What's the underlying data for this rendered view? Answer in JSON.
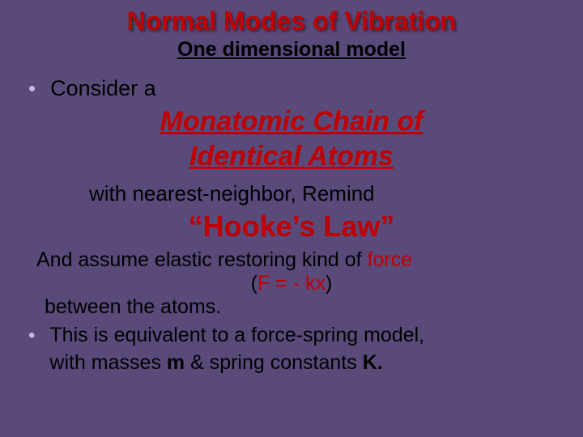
{
  "colors": {
    "background": "#5a4a7a",
    "accent_red": "#c00000",
    "text_black": "#000000",
    "bullet": "#c9b8e0"
  },
  "title": "Normal Modes of Vibration",
  "subtitle": "One dimensional model",
  "bullet_glyph": "•",
  "consider": "Consider a",
  "emphasis_line1": "Monatomic Chain of",
  "emphasis_line2": "Identical Atoms",
  "nn": "with nearest-neighbor, Remind",
  "hooke": "“Hooke’s Law”",
  "assume_pre": "And assume elastic restoring kind of ",
  "assume_force": "force",
  "formula_open": "(",
  "formula_body": "F = - kx",
  "formula_close": ")",
  "between": "between the atoms.",
  "equiv_line1": "This is equivalent to a force-spring model,",
  "equiv_line2_pre": "with masses ",
  "equiv_m": "m",
  "equiv_line2_mid": " & spring constants ",
  "equiv_k": "K.",
  "fonts": {
    "title_size": 32,
    "subtitle_size": 25,
    "body_size": 25,
    "emphasis_size": 34,
    "hooke_size": 36
  }
}
